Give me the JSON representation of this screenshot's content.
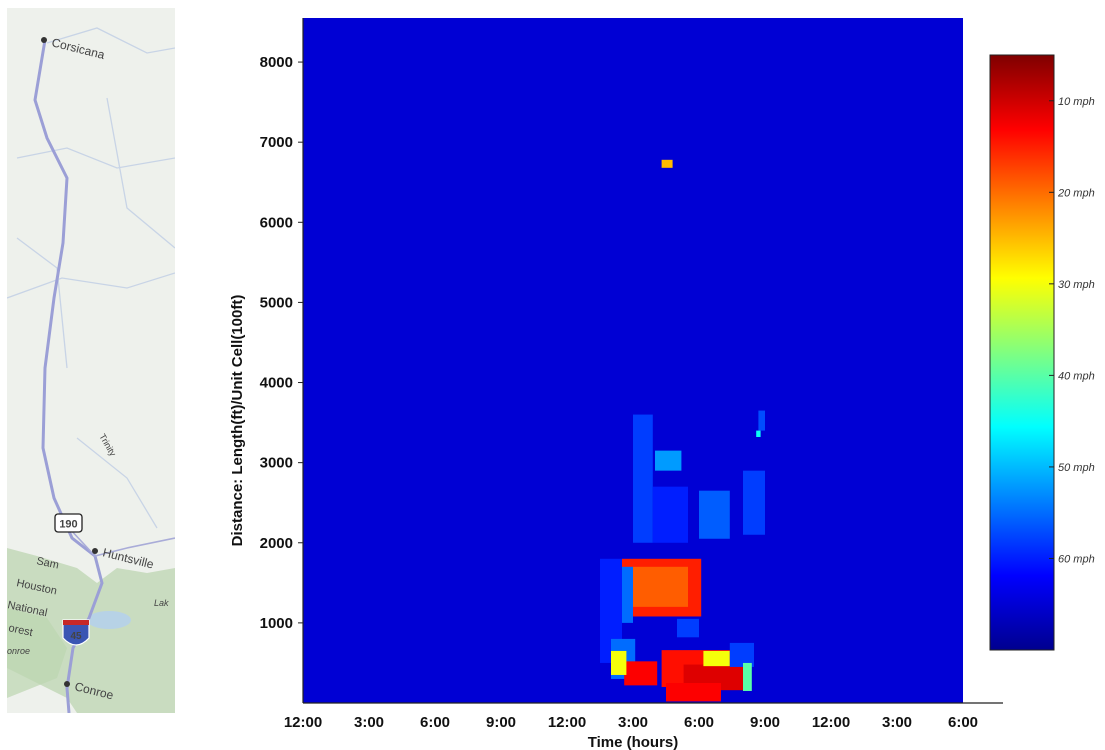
{
  "map": {
    "places": [
      {
        "name": "Corsicana"
      },
      {
        "name": "Huntsville"
      },
      {
        "name": "Conroe"
      }
    ],
    "forest_lines": [
      "Sam",
      "Houston",
      "National",
      "orest"
    ],
    "fragments": [
      "Trinity",
      "Lak",
      "onroe"
    ],
    "shields": {
      "us_route": "190",
      "interstate": "45"
    },
    "colors": {
      "land": "#eef1ec",
      "forest": "#c9dcc0",
      "highway": "#9b9fd6",
      "road": "#c8d4e6",
      "water": "#b7d2e6"
    }
  },
  "chart_data": {
    "type": "heatmap",
    "xlabel": "Time (hours)",
    "ylabel": "Distance: Length(ft)/Unit Cell(100ft)",
    "x_tick_labels": [
      "12:00",
      "3:00",
      "6:00",
      "9:00",
      "12:00",
      "3:00",
      "6:00",
      "9:00",
      "12:00",
      "3:00",
      "6:00"
    ],
    "xlim_hours": [
      0,
      30
    ],
    "x_tick_hours": [
      0,
      3,
      6,
      9,
      12,
      15,
      18,
      21,
      24,
      27,
      30
    ],
    "yticks": [
      1000,
      2000,
      3000,
      4000,
      5000,
      6000,
      7000,
      8000
    ],
    "ylim": [
      0,
      8550
    ],
    "background_speed_mph": 65,
    "colorbar": {
      "ticks": [
        {
          "label": "10 mph",
          "value": 10
        },
        {
          "label": "20 mph",
          "value": 20
        },
        {
          "label": "30 mph",
          "value": 30
        },
        {
          "label": "40 mph",
          "value": 40
        },
        {
          "label": "50 mph",
          "value": 50
        },
        {
          "label": "60 mph",
          "value": 60
        }
      ],
      "range_mph": [
        5,
        70
      ],
      "colors_slow_to_fast": [
        "#7f0000",
        "#ff0000",
        "#ff8000",
        "#ffff00",
        "#80ff80",
        "#00ffff",
        "#0080ff",
        "#0000ff",
        "#00008f"
      ]
    },
    "congestion_regions": [
      {
        "t_start": 16.3,
        "t_end": 16.8,
        "d_start": 6680,
        "d_end": 6780,
        "speed_mph": 25
      },
      {
        "t_start": 15.0,
        "t_end": 15.9,
        "d_start": 2000,
        "d_end": 3600,
        "speed_mph": 58
      },
      {
        "t_start": 16.0,
        "t_end": 17.2,
        "d_start": 2900,
        "d_end": 3150,
        "speed_mph": 52
      },
      {
        "t_start": 15.9,
        "t_end": 17.5,
        "d_start": 2000,
        "d_end": 2700,
        "speed_mph": 60
      },
      {
        "t_start": 18.0,
        "t_end": 19.4,
        "d_start": 2050,
        "d_end": 2650,
        "speed_mph": 56
      },
      {
        "t_start": 20.0,
        "t_end": 21.0,
        "d_start": 2100,
        "d_end": 2900,
        "speed_mph": 58
      },
      {
        "t_start": 20.7,
        "t_end": 21.0,
        "d_start": 3400,
        "d_end": 3650,
        "speed_mph": 57
      },
      {
        "t_start": 20.6,
        "t_end": 20.8,
        "d_start": 3320,
        "d_end": 3400,
        "speed_mph": 45
      },
      {
        "t_start": 13.5,
        "t_end": 14.5,
        "d_start": 500,
        "d_end": 1800,
        "speed_mph": 60
      },
      {
        "t_start": 14.0,
        "t_end": 15.1,
        "d_start": 300,
        "d_end": 800,
        "speed_mph": 55
      },
      {
        "t_start": 14.5,
        "t_end": 18.1,
        "d_start": 1080,
        "d_end": 1800,
        "speed_mph": 15
      },
      {
        "t_start": 15.0,
        "t_end": 17.5,
        "d_start": 1200,
        "d_end": 1700,
        "speed_mph": 19
      },
      {
        "t_start": 14.5,
        "t_end": 15.0,
        "d_start": 1000,
        "d_end": 1700,
        "speed_mph": 55
      },
      {
        "t_start": 17.0,
        "t_end": 18.0,
        "d_start": 820,
        "d_end": 1050,
        "speed_mph": 58
      },
      {
        "t_start": 14.6,
        "t_end": 16.1,
        "d_start": 220,
        "d_end": 520,
        "speed_mph": 13
      },
      {
        "t_start": 14.0,
        "t_end": 14.7,
        "d_start": 350,
        "d_end": 650,
        "speed_mph": 30
      },
      {
        "t_start": 16.3,
        "t_end": 20.3,
        "d_start": 200,
        "d_end": 660,
        "speed_mph": 14
      },
      {
        "t_start": 17.3,
        "t_end": 20.3,
        "d_start": 160,
        "d_end": 480,
        "speed_mph": 11
      },
      {
        "t_start": 16.5,
        "t_end": 19.0,
        "d_start": 20,
        "d_end": 250,
        "speed_mph": 13
      },
      {
        "t_start": 18.2,
        "t_end": 19.4,
        "d_start": 460,
        "d_end": 650,
        "speed_mph": 30
      },
      {
        "t_start": 19.4,
        "t_end": 20.5,
        "d_start": 450,
        "d_end": 750,
        "speed_mph": 58
      },
      {
        "t_start": 20.0,
        "t_end": 20.4,
        "d_start": 150,
        "d_end": 500,
        "speed_mph": 40
      }
    ]
  }
}
